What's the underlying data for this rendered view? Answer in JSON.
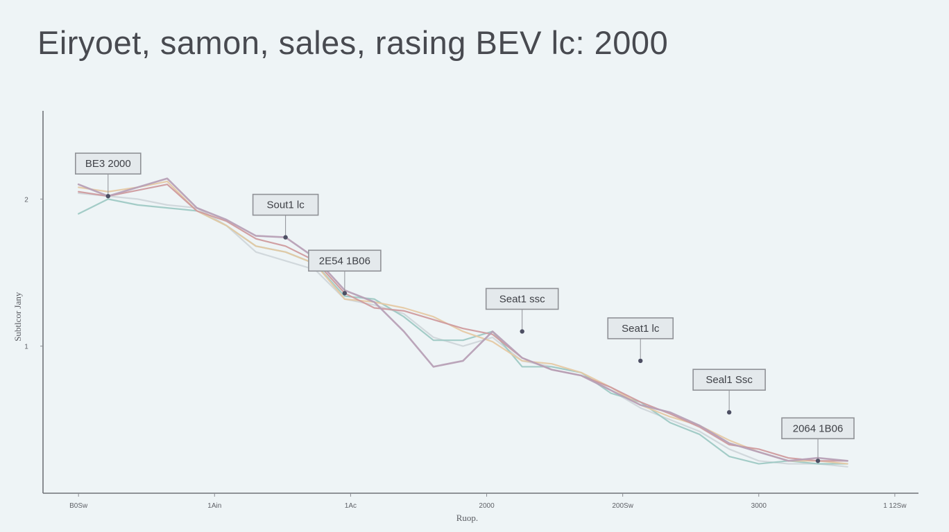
{
  "chart_data": {
    "type": "line",
    "title": "Eiryoet, samon, sales, rasing BEV lc: 2000",
    "xlabel": "Ruop.",
    "ylabel": "Subtlcor Jany",
    "x_ticks": [
      "B0Sw",
      "1Ain",
      "1Ac",
      "2000",
      "200Sw",
      "3000",
      "1 12Sw"
    ],
    "y_ticks": [
      "2",
      "1"
    ],
    "x": [
      0,
      0.25,
      0.5,
      0.75,
      1,
      1.25,
      1.5,
      1.75,
      2,
      2.25,
      2.5,
      2.75,
      3,
      3.25,
      3.5,
      3.75,
      4,
      4.25,
      4.5,
      4.75,
      5,
      5.25,
      5.5,
      5.75,
      6,
      6.25,
      6.5
    ],
    "xlim": [
      -0.3,
      7.1
    ],
    "ylim": [
      0,
      2.6
    ],
    "series": [
      {
        "color": "#b7a0b6",
        "values": [
          2.1,
          2.02,
          2.08,
          2.14,
          1.94,
          1.86,
          1.75,
          1.74,
          1.6,
          1.38,
          1.3,
          1.1,
          0.86,
          0.9,
          1.1,
          0.92,
          0.84,
          0.8,
          0.7,
          0.6,
          0.55,
          0.46,
          0.34,
          0.28,
          0.22,
          0.24,
          0.22
        ]
      },
      {
        "color": "#cf9b9e",
        "values": [
          2.05,
          2.02,
          2.06,
          2.1,
          1.92,
          1.85,
          1.73,
          1.68,
          1.58,
          1.36,
          1.26,
          1.24,
          1.18,
          1.12,
          1.08,
          0.92,
          0.84,
          0.8,
          0.72,
          0.62,
          0.54,
          0.45,
          0.33,
          0.3,
          0.24,
          0.22,
          0.22
        ]
      },
      {
        "color": "#e5c9a4",
        "values": [
          2.08,
          2.05,
          2.08,
          2.12,
          1.92,
          1.82,
          1.68,
          1.64,
          1.56,
          1.32,
          1.3,
          1.26,
          1.2,
          1.1,
          1.03,
          0.9,
          0.88,
          0.82,
          0.72,
          0.6,
          0.52,
          0.46,
          0.36,
          0.28,
          0.22,
          0.22,
          0.2
        ]
      },
      {
        "color": "#9ec9c4",
        "values": [
          1.9,
          2.0,
          1.96,
          1.94,
          1.92,
          1.82,
          1.68,
          1.64,
          1.56,
          1.34,
          1.32,
          1.2,
          1.04,
          1.04,
          1.1,
          0.86,
          0.86,
          0.82,
          0.68,
          0.62,
          0.48,
          0.4,
          0.25,
          0.2,
          0.22,
          0.2,
          0.2
        ]
      },
      {
        "color": "#cfd6da",
        "values": [
          2.04,
          2.02,
          2.0,
          1.96,
          1.94,
          1.82,
          1.64,
          1.58,
          1.52,
          1.32,
          1.28,
          1.22,
          1.06,
          1.0,
          1.06,
          0.9,
          0.86,
          0.82,
          0.7,
          0.58,
          0.5,
          0.42,
          0.3,
          0.22,
          0.2,
          0.2,
          0.18
        ]
      }
    ],
    "callouts": [
      {
        "label": "BE3 2000",
        "x": 0.25,
        "y": 2.02
      },
      {
        "label": "Sout1 lc",
        "x": 1.75,
        "y": 1.74
      },
      {
        "label": "2E54 1B06",
        "x": 2.25,
        "y": 1.36
      },
      {
        "label": "Seat1 ssc",
        "x": 3.75,
        "y": 1.1
      },
      {
        "label": "Seat1 lc",
        "x": 4.75,
        "y": 0.9
      },
      {
        "label": "Seal1 Ssc",
        "x": 5.5,
        "y": 0.55
      },
      {
        "label": "2064 1B06",
        "x": 6.25,
        "y": 0.22
      }
    ],
    "grid": false,
    "legend": "none"
  }
}
